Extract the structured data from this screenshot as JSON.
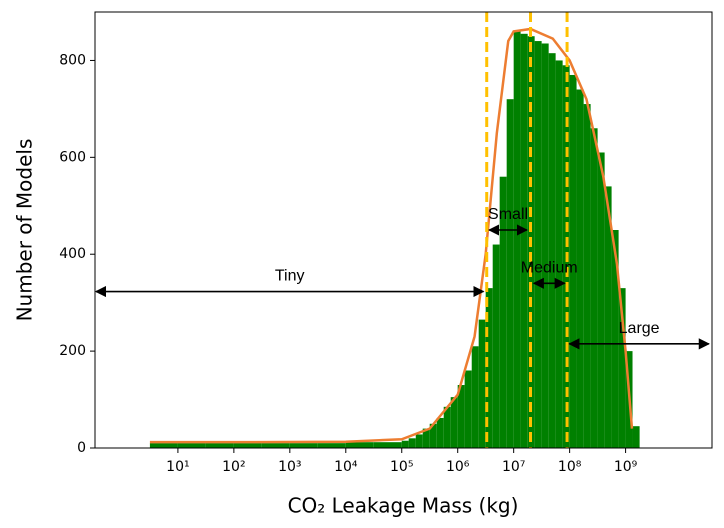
{
  "chart_data": {
    "type": "histogram",
    "xlabel": "CO₂ Leakage Mass (kg)",
    "ylabel": "Number of Models",
    "color": "#008000",
    "xscale": "log",
    "xlim": [
      0.33,
      35000000000
    ],
    "ylim": [
      0,
      900
    ],
    "xticks": [
      {
        "value": 10,
        "label": "10¹"
      },
      {
        "value": 100,
        "label": "10²"
      },
      {
        "value": 1000,
        "label": "10³"
      },
      {
        "value": 10000,
        "label": "10⁴"
      },
      {
        "value": 100000,
        "label": "10⁵"
      },
      {
        "value": 1000000,
        "label": "10⁶"
      },
      {
        "value": 10000000,
        "label": "10⁷"
      },
      {
        "value": 100000000,
        "label": "10⁸"
      },
      {
        "value": 1000000000,
        "label": "10⁹"
      }
    ],
    "yticks": [
      0,
      200,
      400,
      600,
      800
    ],
    "bins": [
      3.16,
      10,
      31.6,
      100,
      316,
      1000,
      3160,
      10000,
      31600,
      100000,
      133000,
      178000,
      237000,
      316000,
      422000,
      562000,
      750000,
      1000000,
      1330000,
      1780000,
      2370000,
      3160000,
      4220000,
      5620000,
      7500000,
      10000000,
      13300000,
      17800000,
      23700000,
      31600000,
      42200000,
      56200000,
      75000000,
      100000000,
      133000000,
      178000000,
      237000000,
      316000000,
      422000000,
      562000000,
      750000000,
      1000000000,
      1330000000,
      1780000000
    ],
    "counts": [
      10,
      10,
      10,
      10,
      10,
      10,
      10,
      12,
      12,
      15,
      20,
      28,
      40,
      50,
      62,
      85,
      105,
      130,
      160,
      210,
      265,
      330,
      420,
      560,
      720,
      860,
      855,
      850,
      840,
      835,
      815,
      800,
      790,
      770,
      740,
      710,
      660,
      610,
      540,
      450,
      330,
      200,
      45
    ],
    "curve": {
      "color": "#ed7d31",
      "x": [
        3.16,
        100,
        10000,
        100000,
        316000,
        1000000,
        2000000,
        3160000,
        5000000,
        8000000,
        10000000,
        20000000,
        50000000,
        100000000,
        200000000,
        400000000,
        700000000,
        1000000000,
        1300000000
      ],
      "values": [
        12,
        12,
        13,
        18,
        40,
        110,
        230,
        400,
        650,
        840,
        860,
        865,
        845,
        800,
        720,
        560,
        380,
        200,
        40
      ]
    },
    "thresholds": {
      "color": "#ffc000",
      "x": [
        3300000,
        20000000,
        90000000
      ]
    },
    "annotations": [
      {
        "text": "Tiny",
        "x": [
          0.33,
          3000000
        ],
        "y": 323
      },
      {
        "text": "Small",
        "x": [
          3500000,
          18000000
        ],
        "y": 450
      },
      {
        "text": "Medium",
        "x": [
          22000000,
          85000000
        ],
        "y": 340
      },
      {
        "text": "Large",
        "x": [
          95000000,
          32000000000
        ],
        "y": 215
      }
    ]
  }
}
